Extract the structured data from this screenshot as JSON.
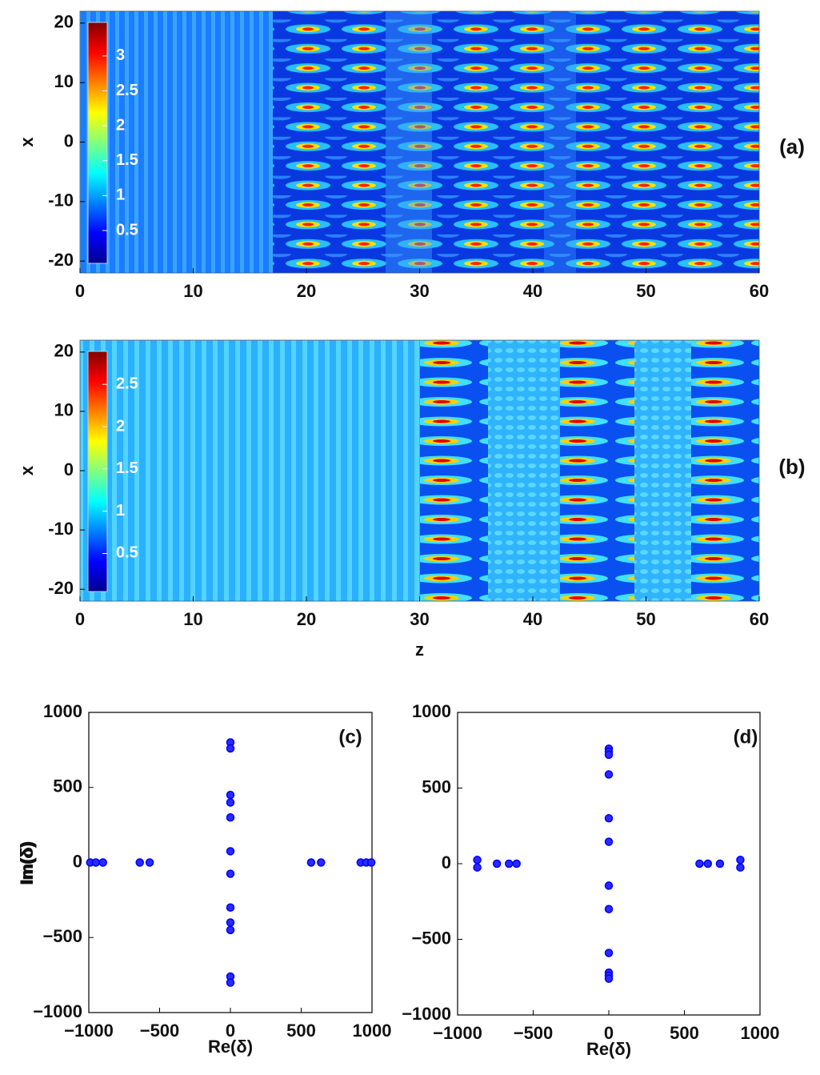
{
  "chart_data": [
    {
      "type": "heatmap",
      "annotation": "(a)",
      "y_label": "x",
      "xlim": [
        0,
        60
      ],
      "xticks": [
        0,
        10,
        20,
        30,
        40,
        50,
        60
      ],
      "ylim": [
        -22,
        22
      ],
      "yticks": [
        -20,
        -10,
        0,
        10,
        20
      ],
      "colorbar_lim": [
        0.03,
        3.48
      ],
      "colorbar_ticks": [
        0.5,
        1,
        1.5,
        2,
        2.5,
        3
      ]
    },
    {
      "type": "heatmap",
      "annotation": "(b)",
      "y_label": "x",
      "x_label": "z",
      "xlim": [
        0,
        60
      ],
      "xticks": [
        0,
        10,
        20,
        30,
        40,
        50,
        60
      ],
      "ylim": [
        -22,
        22
      ],
      "yticks": [
        -20,
        -10,
        0,
        10,
        20
      ],
      "colorbar_lim": [
        0.05,
        2.89
      ],
      "colorbar_ticks": [
        0.5,
        1,
        1.5,
        2,
        2.5
      ]
    },
    {
      "type": "scatter",
      "annotation": "(c)",
      "x_label": "Re(δ)",
      "y_label": "Im(δ)",
      "color": "#0000ff",
      "xlim": [
        -1000,
        1000
      ],
      "ylim": [
        -1000,
        1000
      ],
      "xticks": [
        {
          "value": -1000,
          "label": "−1000"
        },
        {
          "value": -500,
          "label": "−500"
        },
        0,
        500,
        1000
      ],
      "yticks": [
        {
          "value": -1000,
          "label": "−1000"
        },
        {
          "value": -500,
          "label": "−500"
        },
        0,
        500,
        1000
      ],
      "x": [
        0,
        0,
        0,
        0,
        0,
        0,
        0,
        0,
        0,
        0,
        0,
        0,
        -990,
        -950,
        -900,
        -640,
        -570,
        570,
        640,
        920,
        960,
        995
      ],
      "values": [
        800,
        760,
        450,
        400,
        300,
        75,
        -75,
        -300,
        -400,
        -450,
        -760,
        -800,
        0,
        0,
        0,
        0,
        0,
        0,
        0,
        0,
        0,
        0
      ]
    },
    {
      "type": "scatter",
      "annotation": "(d)",
      "x_label": "Re(δ)",
      "y_label": "Im(δ)",
      "color": "#0000ff",
      "xlim": [
        -1000,
        1000
      ],
      "ylim": [
        -1000,
        1000
      ],
      "xticks": [
        {
          "value": -1000,
          "label": "−1000"
        },
        {
          "value": -500,
          "label": "−500"
        },
        0,
        500,
        1000
      ],
      "yticks": [
        {
          "value": -1000,
          "label": "−1000"
        },
        {
          "value": -500,
          "label": "−500"
        },
        0,
        500,
        1000
      ],
      "x": [
        0,
        0,
        0,
        0,
        0,
        0,
        0,
        0,
        0,
        0,
        0,
        0,
        -870,
        -870,
        -740,
        -660,
        -610,
        600,
        655,
        735,
        870,
        870
      ],
      "values": [
        760,
        740,
        720,
        590,
        300,
        145,
        -145,
        -300,
        -590,
        -720,
        -740,
        -760,
        25,
        -25,
        0,
        0,
        0,
        0,
        0,
        0,
        25,
        -25
      ]
    }
  ]
}
